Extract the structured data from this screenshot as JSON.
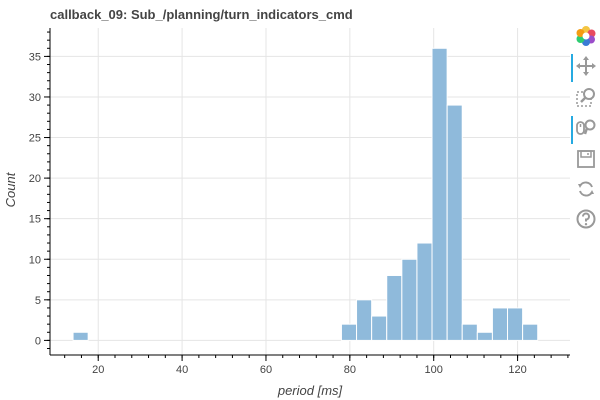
{
  "title": "callback_09: Sub_/planning/turn_indicators_cmd",
  "colors": {
    "bar_fill": "#8fbadb",
    "bar_stroke": "#ffffff",
    "grid": "#e5e5e5",
    "axis": "#000000",
    "text": "#444444",
    "toolbar_active": "#26aae1"
  },
  "toolbar": {
    "tools": [
      {
        "name": "bokeh-logo-icon",
        "active": false
      },
      {
        "name": "pan-icon",
        "active": true
      },
      {
        "name": "box-zoom-icon",
        "active": false
      },
      {
        "name": "wheel-zoom-icon",
        "active": true
      },
      {
        "name": "save-icon",
        "active": false
      },
      {
        "name": "reset-icon",
        "active": false
      },
      {
        "name": "help-icon",
        "active": false
      }
    ]
  },
  "chart_data": {
    "type": "bar",
    "title": "callback_09: Sub_/planning/turn_indicators_cmd",
    "xlabel": "period [ms]",
    "ylabel": "Count",
    "xlim": [
      8.5,
      132.5
    ],
    "ylim": [
      -1.8,
      38.5
    ],
    "xticks": [
      20,
      40,
      60,
      80,
      100,
      120
    ],
    "yticks": [
      0,
      5,
      10,
      15,
      20,
      25,
      30,
      35
    ],
    "grid": true,
    "bins": [
      {
        "start": 14,
        "end": 17.6,
        "count": 1
      },
      {
        "start": 78,
        "end": 81.6,
        "count": 2
      },
      {
        "start": 81.6,
        "end": 85.2,
        "count": 5
      },
      {
        "start": 85.2,
        "end": 88.8,
        "count": 3
      },
      {
        "start": 88.8,
        "end": 92.4,
        "count": 8
      },
      {
        "start": 92.4,
        "end": 96,
        "count": 10
      },
      {
        "start": 96,
        "end": 99.6,
        "count": 12
      },
      {
        "start": 99.6,
        "end": 103.2,
        "count": 36
      },
      {
        "start": 103.2,
        "end": 106.8,
        "count": 29
      },
      {
        "start": 106.8,
        "end": 110.4,
        "count": 2
      },
      {
        "start": 110.4,
        "end": 114,
        "count": 1
      },
      {
        "start": 114,
        "end": 117.6,
        "count": 4
      },
      {
        "start": 117.6,
        "end": 121.2,
        "count": 4
      },
      {
        "start": 121.2,
        "end": 124.8,
        "count": 2
      }
    ]
  }
}
